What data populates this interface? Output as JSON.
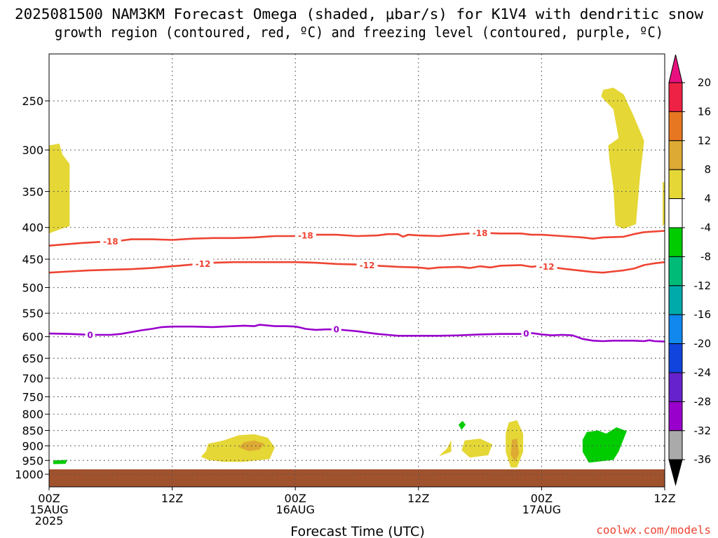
{
  "title": {
    "line1": "2025081500 NAM3KM Forecast Omega (shaded, μbar/s) for K1V4 with dendritic snow",
    "line2": "growth region (contoured, red, ºC) and freezing level (contoured, purple, ºC)"
  },
  "footer": "coolwx.com/models",
  "colors": {
    "dgz_line": "#ee4433",
    "freezing_line": "#9900cc",
    "ground": "#a0522d",
    "grid": "#555555",
    "footer": "#ee4433"
  },
  "chart_data": {
    "type": "heatmap",
    "xlabel": "Forecast Time (UTC)",
    "x_unit": "hours from 2025081500",
    "xlim": [
      0,
      60
    ],
    "ylim": [
      1000,
      200
    ],
    "y_scale": "log-pressure",
    "grid": true,
    "x_ticks": [
      {
        "x": 0,
        "lines": [
          "00Z",
          "15AUG",
          "2025"
        ]
      },
      {
        "x": 12,
        "lines": [
          "12Z"
        ]
      },
      {
        "x": 24,
        "lines": [
          "00Z",
          "16AUG"
        ]
      },
      {
        "x": 36,
        "lines": [
          "12Z"
        ]
      },
      {
        "x": 48,
        "lines": [
          "00Z",
          "17AUG"
        ]
      },
      {
        "x": 60,
        "lines": [
          "12Z"
        ]
      }
    ],
    "y_ticks": [
      250,
      300,
      350,
      400,
      450,
      500,
      550,
      600,
      650,
      700,
      750,
      800,
      850,
      900,
      950,
      1000
    ],
    "colorbar": {
      "labels": [
        "20",
        "16",
        "12",
        "8",
        "4",
        "-4",
        "-8",
        "-12",
        "-16",
        "-20",
        "-24",
        "-28",
        "-32",
        "-36"
      ],
      "boundaries": [
        20,
        16,
        12,
        8,
        4,
        -4,
        -8,
        -12,
        -16,
        -20,
        -24,
        -28,
        -32,
        -36
      ],
      "fills": [
        "#ee2244",
        "#e87722",
        "#ddaa33",
        "#e5d736",
        "#ffffff",
        "#00cc00",
        "#00bb77",
        "#00aaaa",
        "#1188ee",
        "#1144dd",
        "#6622cc",
        "#9900cc",
        "#aaaaaa"
      ],
      "over_color": "#e8117f",
      "under_color": "#000000"
    },
    "contours": [
      {
        "name": "dgz",
        "level": "-18",
        "labels": [
          6.0,
          25.0,
          42.0
        ],
        "points": [
          [
            0,
            428
          ],
          [
            3,
            424
          ],
          [
            5,
            422
          ],
          [
            7,
            420
          ],
          [
            8,
            418
          ],
          [
            10,
            418
          ],
          [
            12,
            419
          ],
          [
            14,
            417
          ],
          [
            16,
            416
          ],
          [
            18,
            416
          ],
          [
            20,
            415
          ],
          [
            22,
            413
          ],
          [
            24,
            413
          ],
          [
            26,
            411
          ],
          [
            28,
            411
          ],
          [
            30,
            413
          ],
          [
            32,
            412
          ],
          [
            33,
            410
          ],
          [
            34,
            410
          ],
          [
            34.5,
            414
          ],
          [
            35,
            411
          ],
          [
            36,
            412
          ],
          [
            38,
            413
          ],
          [
            40,
            410
          ],
          [
            42,
            408
          ],
          [
            44,
            409
          ],
          [
            46,
            409
          ],
          [
            47,
            411
          ],
          [
            48,
            411
          ],
          [
            50,
            413
          ],
          [
            52,
            415
          ],
          [
            53,
            417
          ],
          [
            54,
            415
          ],
          [
            56,
            414
          ],
          [
            57,
            410
          ],
          [
            58,
            407
          ],
          [
            60,
            405
          ]
        ]
      },
      {
        "name": "dgz",
        "level": "-12",
        "labels": [
          15.0,
          31.0,
          48.5
        ],
        "points": [
          [
            0,
            473
          ],
          [
            2,
            471
          ],
          [
            4,
            469
          ],
          [
            6,
            468
          ],
          [
            8,
            467
          ],
          [
            10,
            465
          ],
          [
            12,
            462
          ],
          [
            14,
            459
          ],
          [
            16,
            456
          ],
          [
            18,
            455
          ],
          [
            20,
            455
          ],
          [
            22,
            455
          ],
          [
            24,
            455
          ],
          [
            26,
            456
          ],
          [
            28,
            458
          ],
          [
            30,
            459
          ],
          [
            32,
            461
          ],
          [
            34,
            463
          ],
          [
            36,
            464
          ],
          [
            37,
            466
          ],
          [
            38,
            464
          ],
          [
            40,
            463
          ],
          [
            41,
            465
          ],
          [
            42,
            462
          ],
          [
            43,
            464
          ],
          [
            44,
            461
          ],
          [
            46,
            460
          ],
          [
            47,
            463
          ],
          [
            48,
            461
          ],
          [
            50,
            466
          ],
          [
            51,
            468
          ],
          [
            52,
            470
          ],
          [
            53,
            472
          ],
          [
            54,
            473
          ],
          [
            55,
            471
          ],
          [
            56,
            469
          ],
          [
            57,
            466
          ],
          [
            58,
            460
          ],
          [
            59,
            457
          ],
          [
            60,
            455
          ]
        ]
      },
      {
        "name": "freezing",
        "level": "0",
        "labels": [
          4.0,
          28.0,
          46.5
        ],
        "points": [
          [
            0,
            593
          ],
          [
            2,
            594
          ],
          [
            4,
            596
          ],
          [
            6,
            596
          ],
          [
            7,
            594
          ],
          [
            8,
            590
          ],
          [
            9,
            586
          ],
          [
            10,
            583
          ],
          [
            11,
            579
          ],
          [
            12,
            578
          ],
          [
            14,
            578
          ],
          [
            16,
            579
          ],
          [
            17,
            578
          ],
          [
            18,
            577
          ],
          [
            19,
            576
          ],
          [
            20,
            577
          ],
          [
            20.5,
            574
          ],
          [
            21,
            575
          ],
          [
            22,
            577
          ],
          [
            23,
            577
          ],
          [
            24,
            578
          ],
          [
            24.5,
            580
          ],
          [
            25,
            583
          ],
          [
            26,
            585
          ],
          [
            27,
            584
          ],
          [
            28,
            584
          ],
          [
            29,
            586
          ],
          [
            30,
            588
          ],
          [
            31,
            591
          ],
          [
            32,
            594
          ],
          [
            33,
            596
          ],
          [
            34,
            598
          ],
          [
            36,
            598
          ],
          [
            38,
            598
          ],
          [
            40,
            597
          ],
          [
            42,
            595
          ],
          [
            44,
            594
          ],
          [
            46,
            594
          ],
          [
            47,
            592
          ],
          [
            48,
            595
          ],
          [
            49,
            597
          ],
          [
            50,
            596
          ],
          [
            51,
            597
          ],
          [
            51.5,
            601
          ],
          [
            52,
            605
          ],
          [
            53,
            609
          ],
          [
            54,
            610
          ],
          [
            55,
            609
          ],
          [
            56,
            609
          ],
          [
            57,
            609
          ],
          [
            58,
            610
          ],
          [
            58.5,
            608
          ],
          [
            59,
            610
          ],
          [
            60,
            611
          ]
        ]
      }
    ],
    "omega_regions": [
      {
        "bin": "4 to 8",
        "points": [
          [
            0,
            295
          ],
          [
            1,
            293
          ],
          [
            1.3,
            305
          ],
          [
            2,
            316
          ],
          [
            2,
            398
          ],
          [
            1,
            403
          ],
          [
            0,
            409
          ]
        ]
      },
      {
        "bin": "4 to 8",
        "points": [
          [
            54,
            240
          ],
          [
            55,
            238
          ],
          [
            56,
            244
          ],
          [
            57,
            265
          ],
          [
            58,
            290
          ],
          [
            57.6,
            330
          ],
          [
            57.2,
            395
          ],
          [
            56,
            402
          ],
          [
            55.2,
            397
          ],
          [
            55,
            345
          ],
          [
            54.6,
            310
          ],
          [
            54.5,
            295
          ],
          [
            55.5,
            287
          ],
          [
            55,
            258
          ],
          [
            53.8,
            246
          ]
        ]
      },
      {
        "bin": "4 to 8",
        "points": [
          [
            59.8,
            338
          ],
          [
            60,
            338
          ],
          [
            60,
            395
          ],
          [
            59.8,
            398
          ]
        ]
      },
      {
        "bin": "4 to 8",
        "points": [
          [
            15.5,
            893
          ],
          [
            17,
            882
          ],
          [
            18.5,
            865
          ],
          [
            20,
            862
          ],
          [
            21.3,
            873
          ],
          [
            22,
            905
          ],
          [
            21.5,
            945
          ],
          [
            19,
            955
          ],
          [
            17,
            955
          ],
          [
            15.5,
            948
          ],
          [
            14.8,
            937
          ],
          [
            15.3,
            918
          ]
        ]
      },
      {
        "bin": "8 to 12",
        "points": [
          [
            19,
            888
          ],
          [
            20,
            882
          ],
          [
            21,
            893
          ],
          [
            20.5,
            912
          ],
          [
            19.5,
            918
          ],
          [
            18.5,
            905
          ]
        ]
      },
      {
        "bin": "4 to 8",
        "points": [
          [
            40.5,
            882
          ],
          [
            42,
            876
          ],
          [
            43.2,
            895
          ],
          [
            42.8,
            932
          ],
          [
            41,
            940
          ],
          [
            40.2,
            915
          ]
        ]
      },
      {
        "bin": "4 to 8",
        "points": [
          [
            44.8,
            825
          ],
          [
            45.6,
            818
          ],
          [
            46.2,
            860
          ],
          [
            46.2,
            920
          ],
          [
            45.6,
            975
          ],
          [
            45,
            975
          ],
          [
            44.5,
            920
          ],
          [
            44.5,
            860
          ]
        ]
      },
      {
        "bin": "8 to 12",
        "points": [
          [
            45.1,
            880
          ],
          [
            45.6,
            876
          ],
          [
            45.8,
            925
          ],
          [
            45.4,
            955
          ],
          [
            45,
            930
          ]
        ]
      },
      {
        "bin": "4 to 8",
        "points": [
          [
            39.2,
            880
          ],
          [
            38.8,
            908
          ],
          [
            38,
            935
          ],
          [
            39.2,
            920
          ]
        ]
      },
      {
        "bin": "-8 to -4",
        "points": [
          [
            0.4,
            950
          ],
          [
            1.8,
            948
          ],
          [
            1.6,
            962
          ],
          [
            0.4,
            963
          ]
        ]
      },
      {
        "bin": "-8 to -4",
        "points": [
          [
            40.3,
            820
          ],
          [
            40.6,
            832
          ],
          [
            40.2,
            848
          ],
          [
            39.9,
            832
          ]
        ]
      },
      {
        "bin": "-8 to -4",
        "points": [
          [
            52.4,
            855
          ],
          [
            53.5,
            850
          ],
          [
            54.3,
            860
          ],
          [
            55.3,
            840
          ],
          [
            56.3,
            852
          ],
          [
            55.5,
            920
          ],
          [
            55,
            948
          ],
          [
            52.6,
            958
          ],
          [
            52,
            920
          ],
          [
            52,
            880
          ]
        ]
      }
    ]
  }
}
